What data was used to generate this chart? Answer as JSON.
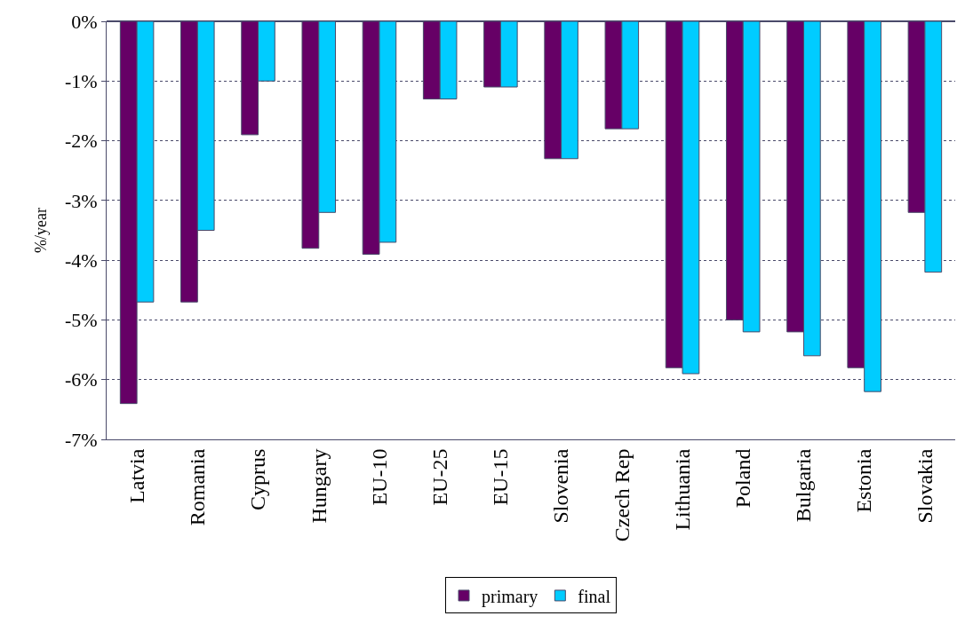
{
  "chart_data": {
    "type": "bar",
    "ylabel": "%/year",
    "categories": [
      "Latvia",
      "Romania",
      "Cyprus",
      "Hungary",
      "EU-10",
      "EU-25",
      "EU-15",
      "Slovenia",
      "Czech Rep",
      "Lithuania",
      "Poland",
      "Bulgaria",
      "Estonia",
      "Slovakia"
    ],
    "series": [
      {
        "name": "primary",
        "color": "#660066",
        "values": [
          -6.4,
          -4.7,
          -1.9,
          -3.8,
          -3.9,
          -1.3,
          -1.1,
          -2.3,
          -1.8,
          -5.8,
          -5.0,
          -5.2,
          -5.8,
          -3.2
        ]
      },
      {
        "name": "final",
        "color": "#00ccff",
        "values": [
          -4.7,
          -3.5,
          -1.0,
          -3.2,
          -3.7,
          -1.3,
          -1.1,
          -2.3,
          -1.8,
          -5.9,
          -5.2,
          -5.6,
          -6.2,
          -4.2
        ]
      }
    ],
    "ylim": [
      -7,
      0
    ],
    "yticks": [
      {
        "value": 0,
        "label": "0%"
      },
      {
        "value": -1,
        "label": "-1%"
      },
      {
        "value": -2,
        "label": "-2%"
      },
      {
        "value": -3,
        "label": "-3%"
      },
      {
        "value": -4,
        "label": "-4%"
      },
      {
        "value": -5,
        "label": "-5%"
      },
      {
        "value": -6,
        "label": "-6%"
      },
      {
        "value": -7,
        "label": "-7%"
      }
    ],
    "grid": "y",
    "legend": "bottom"
  }
}
